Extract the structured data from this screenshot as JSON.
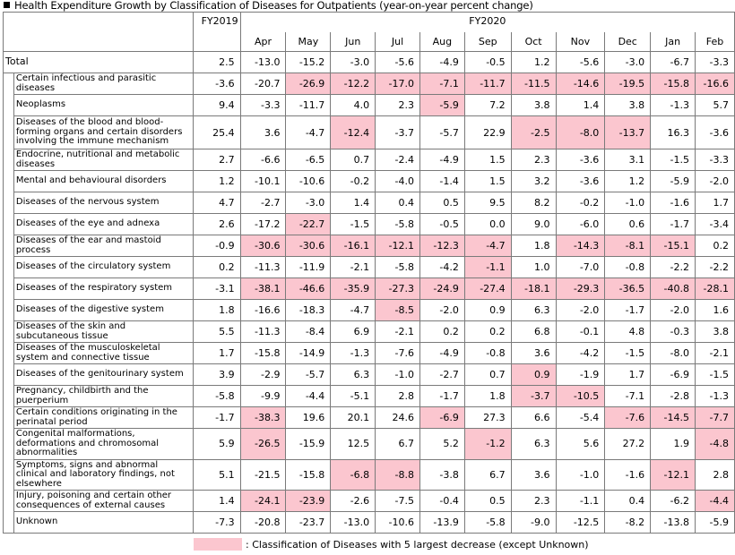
{
  "title": "Health Expenditure Growth by Classification of Diseases for Outpatients (year-on-year percent change)",
  "header": {
    "fy2019": "FY2019",
    "fy2020": "FY2020",
    "months": [
      "Apr",
      "May",
      "Jun",
      "Jul",
      "Aug",
      "Sep",
      "Oct",
      "Nov",
      "Dec",
      "Jan",
      "Feb"
    ]
  },
  "highlight_color": "#fbc6cf",
  "rows": [
    {
      "label": "Total",
      "fy2019": "2.5",
      "values": [
        "-13.0",
        "-15.2",
        "-3.0",
        "-5.6",
        "-4.9",
        "-0.5",
        "1.2",
        "-5.6",
        "-3.0",
        "-6.7",
        "-3.3"
      ],
      "highlight": []
    },
    {
      "label": "Certain infectious and parasitic diseases",
      "fy2019": "-3.6",
      "values": [
        "-20.7",
        "-26.9",
        "-12.2",
        "-17.0",
        "-7.1",
        "-11.7",
        "-11.5",
        "-14.6",
        "-19.5",
        "-15.8",
        "-16.6"
      ],
      "highlight": [
        1,
        2,
        3,
        4,
        5,
        6,
        7,
        8,
        9,
        10
      ]
    },
    {
      "label": "Neoplasms",
      "fy2019": "9.4",
      "values": [
        "-3.3",
        "-11.7",
        "4.0",
        "2.3",
        "-5.9",
        "7.2",
        "3.8",
        "1.4",
        "3.8",
        "-1.3",
        "5.7"
      ],
      "highlight": [
        4
      ]
    },
    {
      "label": "Diseases of the blood and blood-forming organs and certain disorders involving the immune mechanism",
      "fy2019": "25.4",
      "values": [
        "3.6",
        "-4.7",
        "-12.4",
        "-3.7",
        "-5.7",
        "22.9",
        "-2.5",
        "-8.0",
        "-13.7",
        "16.3",
        "-3.6"
      ],
      "highlight": [
        2,
        6,
        7,
        8
      ]
    },
    {
      "label": "Endocrine, nutritional and metabolic diseases",
      "fy2019": "2.7",
      "values": [
        "-6.6",
        "-6.5",
        "0.7",
        "-2.4",
        "-4.9",
        "1.5",
        "2.3",
        "-3.6",
        "3.1",
        "-1.5",
        "-3.3"
      ],
      "highlight": []
    },
    {
      "label": "Mental and behavioural disorders",
      "fy2019": "1.2",
      "values": [
        "-10.1",
        "-10.6",
        "-0.2",
        "-4.0",
        "-1.4",
        "1.5",
        "3.2",
        "-3.6",
        "1.2",
        "-5.9",
        "-2.0"
      ],
      "highlight": []
    },
    {
      "label": "Diseases of the nervous system",
      "fy2019": "4.7",
      "values": [
        "-2.7",
        "-3.0",
        "1.4",
        "0.4",
        "0.5",
        "9.5",
        "8.2",
        "-0.2",
        "-1.0",
        "-1.6",
        "1.7"
      ],
      "highlight": []
    },
    {
      "label": "Diseases of the eye and adnexa",
      "fy2019": "2.6",
      "values": [
        "-17.2",
        "-22.7",
        "-1.5",
        "-5.8",
        "-0.5",
        "0.0",
        "9.0",
        "-6.0",
        "0.6",
        "-1.7",
        "-3.4"
      ],
      "highlight": [
        1
      ]
    },
    {
      "label": "Diseases of the ear and mastoid process",
      "fy2019": "-0.9",
      "values": [
        "-30.6",
        "-30.6",
        "-16.1",
        "-12.1",
        "-12.3",
        "-4.7",
        "1.8",
        "-14.3",
        "-8.1",
        "-15.1",
        "0.2"
      ],
      "highlight": [
        0,
        1,
        2,
        3,
        4,
        5,
        7,
        8,
        9
      ]
    },
    {
      "label": "Diseases of the circulatory system",
      "fy2019": "0.2",
      "values": [
        "-11.3",
        "-11.9",
        "-2.1",
        "-5.8",
        "-4.2",
        "-1.1",
        "1.0",
        "-7.0",
        "-0.8",
        "-2.2",
        "-2.2"
      ],
      "highlight": [
        5
      ]
    },
    {
      "label": "Diseases of the respiratory system",
      "fy2019": "-3.1",
      "values": [
        "-38.1",
        "-46.6",
        "-35.9",
        "-27.3",
        "-24.9",
        "-27.4",
        "-18.1",
        "-29.3",
        "-36.5",
        "-40.8",
        "-28.1"
      ],
      "highlight": [
        0,
        1,
        2,
        3,
        4,
        5,
        6,
        7,
        8,
        9,
        10
      ]
    },
    {
      "label": "Diseases of the digestive system",
      "fy2019": "1.8",
      "values": [
        "-16.6",
        "-18.3",
        "-4.7",
        "-8.5",
        "-2.0",
        "0.9",
        "6.3",
        "-2.0",
        "-1.7",
        "-2.0",
        "1.6"
      ],
      "highlight": [
        3
      ]
    },
    {
      "label": "Diseases of the skin and subcutaneous tissue",
      "fy2019": "5.5",
      "values": [
        "-11.3",
        "-8.4",
        "6.9",
        "-2.1",
        "0.2",
        "0.2",
        "6.8",
        "-0.1",
        "4.8",
        "-0.3",
        "3.8"
      ],
      "highlight": []
    },
    {
      "label": "Diseases of the musculoskeletal system and connective tissue",
      "fy2019": "1.7",
      "values": [
        "-15.8",
        "-14.9",
        "-1.3",
        "-7.6",
        "-4.9",
        "-0.8",
        "3.6",
        "-4.2",
        "-1.5",
        "-8.0",
        "-2.1"
      ],
      "highlight": []
    },
    {
      "label": "Diseases of the genitourinary system",
      "fy2019": "3.9",
      "values": [
        "-2.9",
        "-5.7",
        "6.3",
        "-1.0",
        "-2.7",
        "0.7",
        "0.9",
        "-1.9",
        "1.7",
        "-6.9",
        "-1.5"
      ],
      "highlight": [
        6
      ]
    },
    {
      "label": "Pregnancy, childbirth and the puerperium",
      "fy2019": "-5.8",
      "values": [
        "-9.9",
        "-4.4",
        "-5.1",
        "2.8",
        "-1.7",
        "1.8",
        "-3.7",
        "-10.5",
        "-7.1",
        "-2.8",
        "-1.3"
      ],
      "highlight": [
        6,
        7
      ]
    },
    {
      "label": "Certain conditions originating in the perinatal period",
      "fy2019": "-1.7",
      "values": [
        "-38.3",
        "19.6",
        "20.1",
        "24.6",
        "-6.9",
        "27.3",
        "6.6",
        "-5.4",
        "-7.6",
        "-14.5",
        "-7.7"
      ],
      "highlight": [
        0,
        4,
        8,
        9,
        10
      ]
    },
    {
      "label": "Congenital malformations, deformations and chromosomal abnormalities",
      "fy2019": "5.9",
      "values": [
        "-26.5",
        "-15.9",
        "12.5",
        "6.7",
        "5.2",
        "-1.2",
        "6.3",
        "5.6",
        "27.2",
        "1.9",
        "-4.8"
      ],
      "highlight": [
        0,
        5,
        10
      ]
    },
    {
      "label": "Symptoms, signs and abnormal clinical and laboratory findings, not elsewhere",
      "fy2019": "5.1",
      "values": [
        "-21.5",
        "-15.8",
        "-6.8",
        "-8.8",
        "-3.8",
        "6.7",
        "3.6",
        "-1.0",
        "-1.6",
        "-12.1",
        "2.8"
      ],
      "highlight": [
        2,
        3,
        9
      ]
    },
    {
      "label": "Injury, poisoning and certain other consequences of external causes",
      "fy2019": "1.4",
      "values": [
        "-24.1",
        "-23.9",
        "-2.6",
        "-7.5",
        "-0.4",
        "0.5",
        "2.3",
        "-1.1",
        "0.4",
        "-6.2",
        "-4.4"
      ],
      "highlight": [
        0,
        1,
        10
      ]
    },
    {
      "label": "Unknown",
      "fy2019": "-7.3",
      "values": [
        "-20.8",
        "-23.7",
        "-13.0",
        "-10.6",
        "-13.9",
        "-5.8",
        "-9.0",
        "-12.5",
        "-8.2",
        "-13.8",
        "-5.9"
      ],
      "highlight": []
    }
  ],
  "legend": ": Classification of Diseases with 5 largest decrease (except Unknown)"
}
